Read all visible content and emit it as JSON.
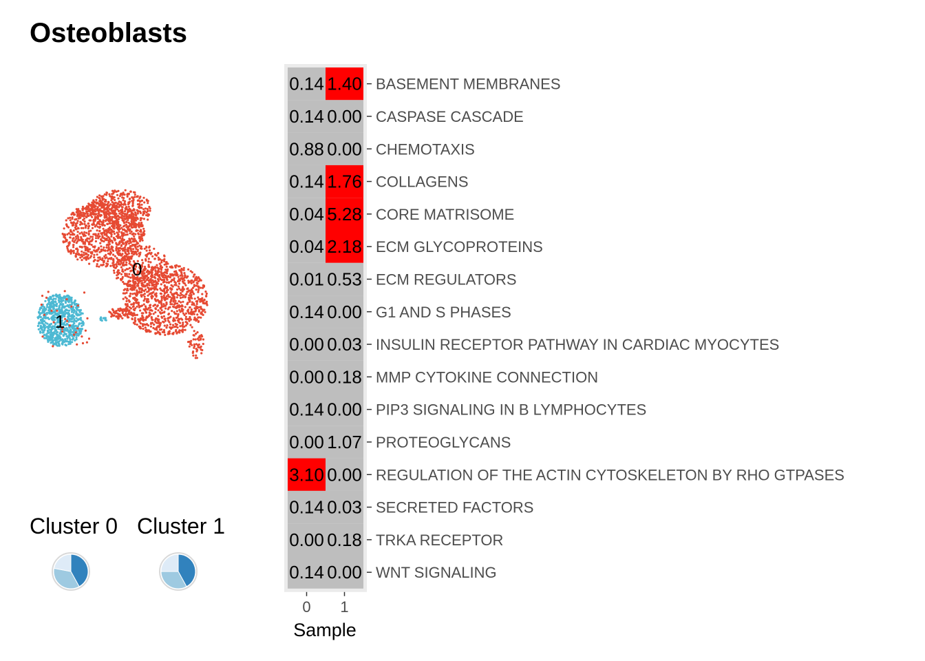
{
  "title": "Osteoblasts",
  "legend": {
    "cluster_labels": [
      "Cluster 0",
      "Cluster 1"
    ]
  },
  "umap": {
    "clusters": [
      {
        "label": "0",
        "color": "#e64a33"
      },
      {
        "label": "1",
        "color": "#4db9d3"
      }
    ]
  },
  "colors": {
    "high": "#ff0000",
    "low": "#bebebe",
    "panel": "#ebebeb",
    "pie_dark": "#3182bd",
    "pie_mid": "#9ecae1",
    "pie_light": "#deebf7"
  },
  "chart_data": {
    "type": "heatmap",
    "xlabel": "Sample",
    "x": [
      "0",
      "1"
    ],
    "rows": [
      "BASEMENT MEMBRANES",
      "CASPASE CASCADE",
      "CHEMOTAXIS",
      "COLLAGENS",
      "CORE MATRISOME",
      "ECM GLYCOPROTEINS",
      "ECM REGULATORS",
      "G1 AND S PHASES",
      "INSULIN RECEPTOR PATHWAY IN CARDIAC MYOCYTES",
      "MMP CYTOKINE CONNECTION",
      "PIP3 SIGNALING IN B LYMPHOCYTES",
      "PROTEOGLYCANS",
      "REGULATION OF THE ACTIN CYTOSKELETON BY RHO GTPASES",
      "SECRETED FACTORS",
      "TRKA RECEPTOR",
      "WNT SIGNALING"
    ],
    "values": [
      [
        "0.14",
        "1.40"
      ],
      [
        "0.14",
        "0.00"
      ],
      [
        "0.88",
        "0.00"
      ],
      [
        "0.14",
        "1.76"
      ],
      [
        "0.04",
        "5.28"
      ],
      [
        "0.04",
        "2.18"
      ],
      [
        "0.01",
        "0.53"
      ],
      [
        "0.14",
        "0.00"
      ],
      [
        "0.00",
        "0.03"
      ],
      [
        "0.00",
        "0.18"
      ],
      [
        "0.14",
        "0.00"
      ],
      [
        "0.00",
        "1.07"
      ],
      [
        "3.10",
        "0.00"
      ],
      [
        "0.14",
        "0.03"
      ],
      [
        "0.00",
        "0.18"
      ],
      [
        "0.14",
        "0.00"
      ]
    ],
    "highlighted": [
      [
        false,
        true
      ],
      [
        false,
        false
      ],
      [
        false,
        false
      ],
      [
        false,
        true
      ],
      [
        false,
        true
      ],
      [
        false,
        true
      ],
      [
        false,
        false
      ],
      [
        false,
        false
      ],
      [
        false,
        false
      ],
      [
        false,
        false
      ],
      [
        false,
        false
      ],
      [
        false,
        false
      ],
      [
        true,
        false
      ],
      [
        false,
        false
      ],
      [
        false,
        false
      ],
      [
        false,
        false
      ]
    ],
    "pies": [
      {
        "cluster": "Cluster 0",
        "fractions": [
          0.42,
          0.36,
          0.22
        ]
      },
      {
        "cluster": "Cluster 1",
        "fractions": [
          0.42,
          0.33,
          0.25
        ]
      }
    ]
  }
}
